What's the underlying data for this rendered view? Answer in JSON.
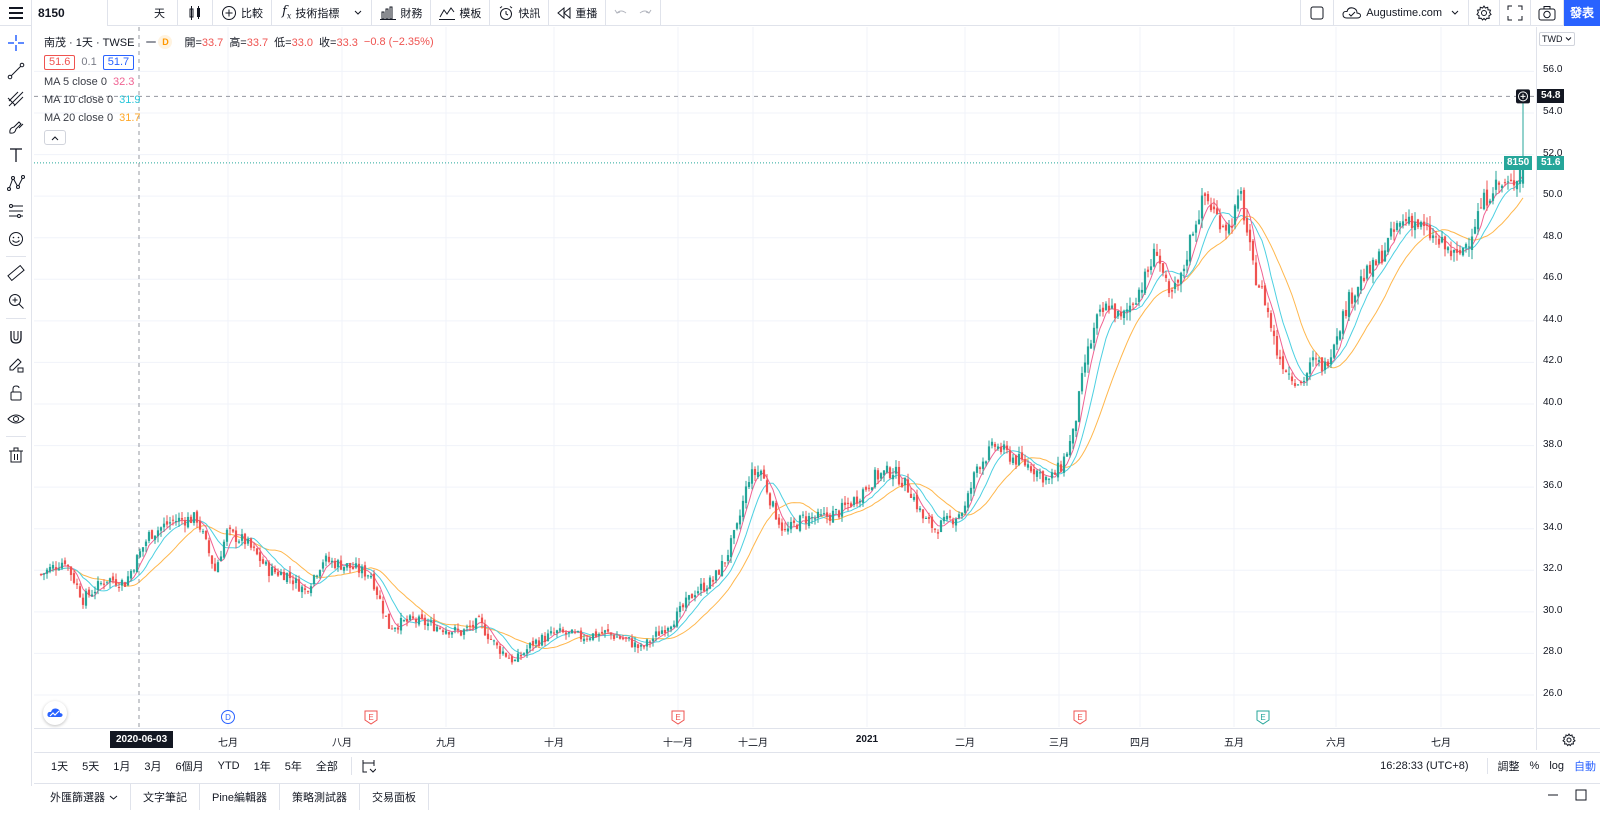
{
  "topbar": {
    "symbol": "8150",
    "interval": "天",
    "compare_label": "比較",
    "indicators_label": "技術指標",
    "financials_label": "財務",
    "templates_label": "模板",
    "alerts_label": "快訊",
    "replay_label": "重播",
    "account_label": "Augustime.com",
    "publish_label": "發表"
  },
  "legend": {
    "title": "南茂 · 1天 · TWSE",
    "dividend_marker": "D",
    "open_label": "開=",
    "open": "33.7",
    "high_label": "高=",
    "high": "33.7",
    "low_label": "低=",
    "low": "33.0",
    "close_label": "收=",
    "close": "33.3",
    "change": "−0.8 (−2.35%)",
    "bid": "51.6",
    "spread": "0.1",
    "ask": "51.7",
    "ma5_name": "MA 5 close 0",
    "ma5_val": "32.3",
    "ma10_name": "MA 10 close 0",
    "ma10_val": "31.9",
    "ma20_name": "MA 20 close 0",
    "ma20_val": "31.7"
  },
  "price_axis": {
    "currency": "TWD",
    "ticks": [
      "56.0",
      "54.0",
      "52.0",
      "50.0",
      "48.0",
      "46.0",
      "44.0",
      "42.0",
      "40.0",
      "38.0",
      "36.0",
      "34.0",
      "32.0",
      "30.0",
      "28.0",
      "26.0"
    ],
    "crosshair_price": "54.8",
    "last_symbol": "8150",
    "last_price": "51.6"
  },
  "time_axis": {
    "labels": [
      "七月",
      "八月",
      "九月",
      "十月",
      "十一月",
      "十二月",
      "2021",
      "二月",
      "三月",
      "四月",
      "五月",
      "六月",
      "七月"
    ],
    "crosshair_date": "2020-06-03"
  },
  "events": [
    "D",
    "E",
    "E",
    "E",
    "E"
  ],
  "ranges": [
    "1天",
    "5天",
    "1月",
    "3月",
    "6個月",
    "YTD",
    "1年",
    "5年",
    "全部"
  ],
  "bottom_right": {
    "clock": "16:28:33 (UTC+8)",
    "adjust": "調整",
    "percent": "%",
    "log": "log",
    "auto": "自動"
  },
  "footer_tabs": [
    "外匯篩選器",
    "文字筆記",
    "Pine編輯器",
    "策略測試器",
    "交易面板"
  ],
  "colors": {
    "up": "#26a69a",
    "down": "#ef5350",
    "ma5": "#f06292",
    "ma10": "#4dd0e1",
    "ma20": "#ffb74d",
    "accent": "#2962ff"
  },
  "chart_data": {
    "type": "candlestick",
    "ylim": [
      25,
      57.5
    ],
    "ma_series": [
      {
        "name": "MA 5 close 0",
        "color": "#f06292"
      },
      {
        "name": "MA 10 close 0",
        "color": "#4dd0e1"
      },
      {
        "name": "MA 20 close 0",
        "color": "#ffb74d"
      }
    ],
    "anchors": [
      [
        0,
        31.8
      ],
      [
        8,
        32.5
      ],
      [
        14,
        30.6
      ],
      [
        22,
        31.6
      ],
      [
        28,
        31.4
      ],
      [
        36,
        33.7
      ],
      [
        44,
        34.4
      ],
      [
        52,
        34.5
      ],
      [
        58,
        32.0
      ],
      [
        62,
        33.8
      ],
      [
        68,
        33.4
      ],
      [
        76,
        32.0
      ],
      [
        82,
        31.8
      ],
      [
        88,
        31.0
      ],
      [
        94,
        32.5
      ],
      [
        102,
        32.2
      ],
      [
        110,
        31.8
      ],
      [
        116,
        29.3
      ],
      [
        124,
        29.6
      ],
      [
        132,
        29.3
      ],
      [
        140,
        29.0
      ],
      [
        146,
        29.5
      ],
      [
        152,
        28.3
      ],
      [
        158,
        27.6
      ],
      [
        164,
        28.5
      ],
      [
        172,
        29.0
      ],
      [
        180,
        28.8
      ],
      [
        188,
        29.0
      ],
      [
        196,
        28.6
      ],
      [
        200,
        28.2
      ],
      [
        206,
        29.0
      ],
      [
        212,
        29.8
      ],
      [
        218,
        31.0
      ],
      [
        224,
        31.5
      ],
      [
        228,
        32.5
      ],
      [
        232,
        34.0
      ],
      [
        236,
        36.5
      ],
      [
        240,
        36.8
      ],
      [
        244,
        35.0
      ],
      [
        248,
        33.8
      ],
      [
        254,
        34.5
      ],
      [
        260,
        34.5
      ],
      [
        266,
        34.8
      ],
      [
        272,
        35.5
      ],
      [
        278,
        36.5
      ],
      [
        284,
        36.8
      ],
      [
        290,
        35.8
      ],
      [
        294,
        34.5
      ],
      [
        298,
        34.0
      ],
      [
        304,
        34.5
      ],
      [
        308,
        35.0
      ],
      [
        312,
        37.0
      ],
      [
        318,
        38.0
      ],
      [
        324,
        37.4
      ],
      [
        330,
        37.0
      ],
      [
        336,
        36.3
      ],
      [
        340,
        37.0
      ],
      [
        344,
        38.5
      ],
      [
        348,
        42.0
      ],
      [
        352,
        44.0
      ],
      [
        356,
        44.8
      ],
      [
        360,
        44.0
      ],
      [
        364,
        45.0
      ],
      [
        368,
        46.0
      ],
      [
        372,
        47.5
      ],
      [
        376,
        45.0
      ],
      [
        380,
        46.0
      ],
      [
        384,
        48.5
      ],
      [
        388,
        50.0
      ],
      [
        392,
        49.0
      ],
      [
        396,
        48.5
      ],
      [
        400,
        50.0
      ],
      [
        404,
        46.5
      ],
      [
        408,
        45.0
      ],
      [
        412,
        42.5
      ],
      [
        416,
        41.5
      ],
      [
        420,
        41.0
      ],
      [
        424,
        42.0
      ],
      [
        428,
        41.8
      ],
      [
        432,
        43.5
      ],
      [
        436,
        45.0
      ],
      [
        440,
        46.0
      ],
      [
        444,
        46.5
      ],
      [
        448,
        47.5
      ],
      [
        452,
        48.5
      ],
      [
        456,
        49.0
      ],
      [
        460,
        48.5
      ],
      [
        464,
        48.0
      ],
      [
        468,
        47.5
      ],
      [
        472,
        47.0
      ],
      [
        476,
        48.0
      ],
      [
        480,
        49.5
      ],
      [
        484,
        50.5
      ],
      [
        490,
        50.5
      ],
      [
        494,
        51.6
      ]
    ],
    "last_index": 494
  }
}
